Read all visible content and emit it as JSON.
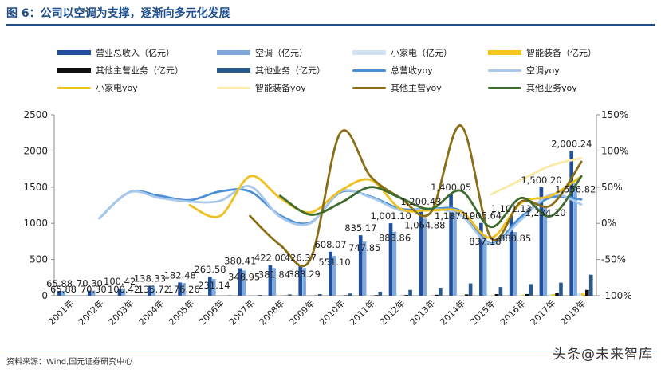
{
  "title": "图 6：公司以空调为支撑，逐渐向多元化发展",
  "source": "资料来源：Wind,国元证券研究中心",
  "watermark": "头条@未来智库",
  "legend": [
    {
      "label": "营业总收入（亿元）",
      "kind": "bar",
      "color": "#1f4e9c"
    },
    {
      "label": "空调（亿元）",
      "kind": "bar",
      "color": "#7fa9dc"
    },
    {
      "label": "小家电（亿元）",
      "kind": "bar",
      "color": "#d3e3f5"
    },
    {
      "label": "智能装备（亿元）",
      "kind": "bar",
      "color": "#f5c518"
    },
    {
      "label": "其他主营业务（亿元）",
      "kind": "bar",
      "color": "#111111"
    },
    {
      "label": "其他业务（亿元）",
      "kind": "bar",
      "color": "#2a5a8a"
    },
    {
      "label": "总营收yoy",
      "kind": "line",
      "color": "#4a8fd6"
    },
    {
      "label": "空调yoy",
      "kind": "line",
      "color": "#a9c8ea"
    },
    {
      "label": "小家电yoy",
      "kind": "line",
      "color": "#f0c020"
    },
    {
      "label": "智能装备yoy",
      "kind": "line",
      "color": "#fbe9a8"
    },
    {
      "label": "其他主营yoy",
      "kind": "line",
      "color": "#8a6d14"
    },
    {
      "label": "其他业务yoy",
      "kind": "line",
      "color": "#3e6b2e"
    }
  ],
  "chart_data": {
    "type": "bar",
    "categories": [
      "2001年",
      "2002年",
      "2003年",
      "2004年",
      "2005年",
      "2006年",
      "2007年",
      "2008年",
      "2009年",
      "2010年",
      "2011年",
      "2012年",
      "2013年",
      "2014年",
      "2015年",
      "2016年",
      "2017年",
      "2018年"
    ],
    "ylim": [
      0,
      2500
    ],
    "y_ticks": [
      "0",
      "500",
      "1000",
      "1500",
      "2000",
      "2500"
    ],
    "y2lim": [
      -100,
      150
    ],
    "y2_ticks": [
      "-100%",
      "-50%",
      "0%",
      "50%",
      "100%",
      "150%"
    ],
    "series": [
      {
        "name": "营业总收入（亿元）",
        "axis": "left",
        "kind": "bar",
        "color": "#1f4e9c",
        "values": [
          65.88,
          70.3,
          100.42,
          138.33,
          182.48,
          263.58,
          380.41,
          422.0,
          426.37,
          608.07,
          835.17,
          1001.1,
          1200.43,
          1400.05,
          1005.64,
          1101.13,
          1500.2,
          2000.24
        ],
        "labels": [
          "65.88",
          "70.30",
          "100.42",
          "138.33",
          "182.48",
          "263.58",
          "380.41",
          "422.00",
          "426.37",
          "608.07",
          "835.17",
          "1,001.10",
          "1,200.43",
          "1,400.05",
          "1,005.64",
          "1,101.13",
          "1,500.20",
          "2,000.24"
        ]
      },
      {
        "name": "空调（亿元）",
        "axis": "left",
        "kind": "bar",
        "color": "#7fa9dc",
        "values": [
          65.88,
          70.3,
          100.42,
          135.72,
          176.26,
          231.14,
          348.95,
          381.84,
          383.29,
          551.1,
          747.85,
          883.86,
          1064.88,
          1187.19,
          837.18,
          880.85,
          1234.1,
          1556.82
        ],
        "labels": [
          "65.88",
          "70.30",
          "100.42",
          "135.72",
          "176.26",
          "231.14",
          "348.95",
          "381.84",
          "383.29",
          "551.10",
          "747.85",
          "883.86",
          "1,064.88",
          "1,187.19",
          "837.18",
          "880.85",
          "1,234.10",
          "1,556.82"
        ]
      },
      {
        "name": "小家电（亿元）",
        "axis": "left",
        "kind": "bar",
        "color": "#d3e3f5",
        "values": [
          0,
          0,
          0,
          0,
          0,
          1,
          2,
          2,
          2,
          3,
          4,
          5,
          6,
          7,
          8,
          8,
          20,
          38
        ]
      },
      {
        "name": "智能装备（亿元）",
        "axis": "left",
        "kind": "bar",
        "color": "#f5c518",
        "values": [
          0,
          0,
          0,
          0,
          0,
          0,
          0,
          0,
          0,
          0,
          0,
          0,
          1,
          3,
          5,
          10,
          20,
          31
        ]
      },
      {
        "name": "其他主营业务（亿元）",
        "axis": "left",
        "kind": "bar",
        "color": "#111111",
        "values": [
          0,
          0,
          0,
          0,
          0,
          0,
          0,
          3,
          3,
          6,
          8,
          10,
          13,
          18,
          22,
          23,
          40,
          80
        ]
      },
      {
        "name": "其他业务（亿元）",
        "axis": "left",
        "kind": "bar",
        "color": "#2a5a8a",
        "values": [
          0,
          0,
          0,
          0,
          4,
          6,
          10,
          18,
          22,
          30,
          55,
          80,
          110,
          170,
          120,
          160,
          180,
          290
        ]
      },
      {
        "name": "总营收yoy",
        "axis": "right",
        "kind": "line",
        "color": "#4a8fd6",
        "values": [
          null,
          7,
          43,
          38,
          32,
          44,
          44,
          11,
          1,
          43,
          37,
          20,
          20,
          17,
          -28,
          9,
          36,
          33
        ]
      },
      {
        "name": "空调yoy",
        "axis": "right",
        "kind": "line",
        "color": "#a9c8ea",
        "values": [
          null,
          7,
          43,
          35,
          30,
          31,
          51,
          9,
          0,
          44,
          36,
          18,
          20,
          11,
          -29,
          5,
          40,
          26
        ]
      },
      {
        "name": "小家电yoy",
        "axis": "right",
        "kind": "line",
        "color": "#f0c020",
        "values": [
          null,
          null,
          null,
          null,
          25,
          10,
          65,
          35,
          15,
          45,
          60,
          20,
          18,
          16,
          -20,
          28,
          38,
          65
        ]
      },
      {
        "name": "智能装备yoy",
        "axis": "right",
        "kind": "line",
        "color": "#fbe9a8",
        "values": [
          null,
          null,
          null,
          null,
          null,
          null,
          null,
          null,
          null,
          null,
          null,
          null,
          null,
          null,
          40,
          60,
          80,
          90
        ]
      },
      {
        "name": "其他主营yoy",
        "axis": "right",
        "kind": "line",
        "color": "#8a6d14",
        "values": [
          null,
          null,
          null,
          null,
          null,
          null,
          10,
          -30,
          -50,
          125,
          65,
          35,
          15,
          135,
          -20,
          30,
          25,
          85
        ]
      },
      {
        "name": "其他业务yoy",
        "axis": "right",
        "kind": "line",
        "color": "#3e6b2e",
        "values": [
          null,
          null,
          null,
          null,
          null,
          null,
          null,
          38,
          12,
          28,
          50,
          35,
          20,
          45,
          -5,
          35,
          10,
          65
        ]
      }
    ]
  }
}
